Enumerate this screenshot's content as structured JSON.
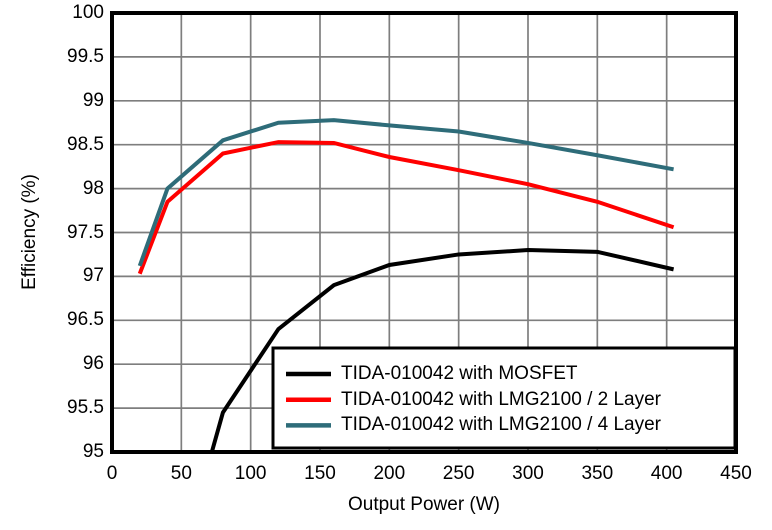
{
  "chart_data": {
    "type": "line",
    "title": "",
    "xlabel": "Output Power (W)",
    "ylabel": "Efficiency (%)",
    "xlim": [
      0,
      450
    ],
    "ylim": [
      95,
      100
    ],
    "xticks": [
      0,
      50,
      100,
      150,
      200,
      250,
      300,
      350,
      400,
      450
    ],
    "yticks": [
      95,
      95.5,
      96,
      96.5,
      97,
      97.5,
      98,
      98.5,
      99,
      99.5,
      100
    ],
    "grid": true,
    "background_color": "#ffffff",
    "frame_color": "#000000",
    "grid_color": "#7e7e7e",
    "text_color": "#000000",
    "legend": {
      "position": "inside-bottom-right",
      "border_color": "#000000",
      "background_color": "#ffffff"
    },
    "series": [
      {
        "name": "TIDA-010042 with MOSFET",
        "color": "#000000",
        "points": [
          [
            72,
            95.0
          ],
          [
            80,
            95.45
          ],
          [
            120,
            96.4
          ],
          [
            160,
            96.9
          ],
          [
            200,
            97.13
          ],
          [
            250,
            97.25
          ],
          [
            300,
            97.3
          ],
          [
            350,
            97.28
          ],
          [
            405,
            97.08
          ]
        ]
      },
      {
        "name": "TIDA-010042 with LMG2100 / 2 Layer",
        "color": "#ff0000",
        "points": [
          [
            20,
            97.03
          ],
          [
            40,
            97.85
          ],
          [
            80,
            98.4
          ],
          [
            120,
            98.53
          ],
          [
            160,
            98.52
          ],
          [
            200,
            98.36
          ],
          [
            250,
            98.21
          ],
          [
            300,
            98.05
          ],
          [
            350,
            97.85
          ],
          [
            405,
            97.56
          ]
        ]
      },
      {
        "name": "TIDA-010042 with LMG2100 / 4 Layer",
        "color": "#2e6c79",
        "points": [
          [
            20,
            97.12
          ],
          [
            40,
            98.0
          ],
          [
            80,
            98.55
          ],
          [
            120,
            98.75
          ],
          [
            160,
            98.78
          ],
          [
            200,
            98.72
          ],
          [
            250,
            98.65
          ],
          [
            300,
            98.52
          ],
          [
            350,
            98.38
          ],
          [
            405,
            98.22
          ]
        ]
      }
    ]
  }
}
